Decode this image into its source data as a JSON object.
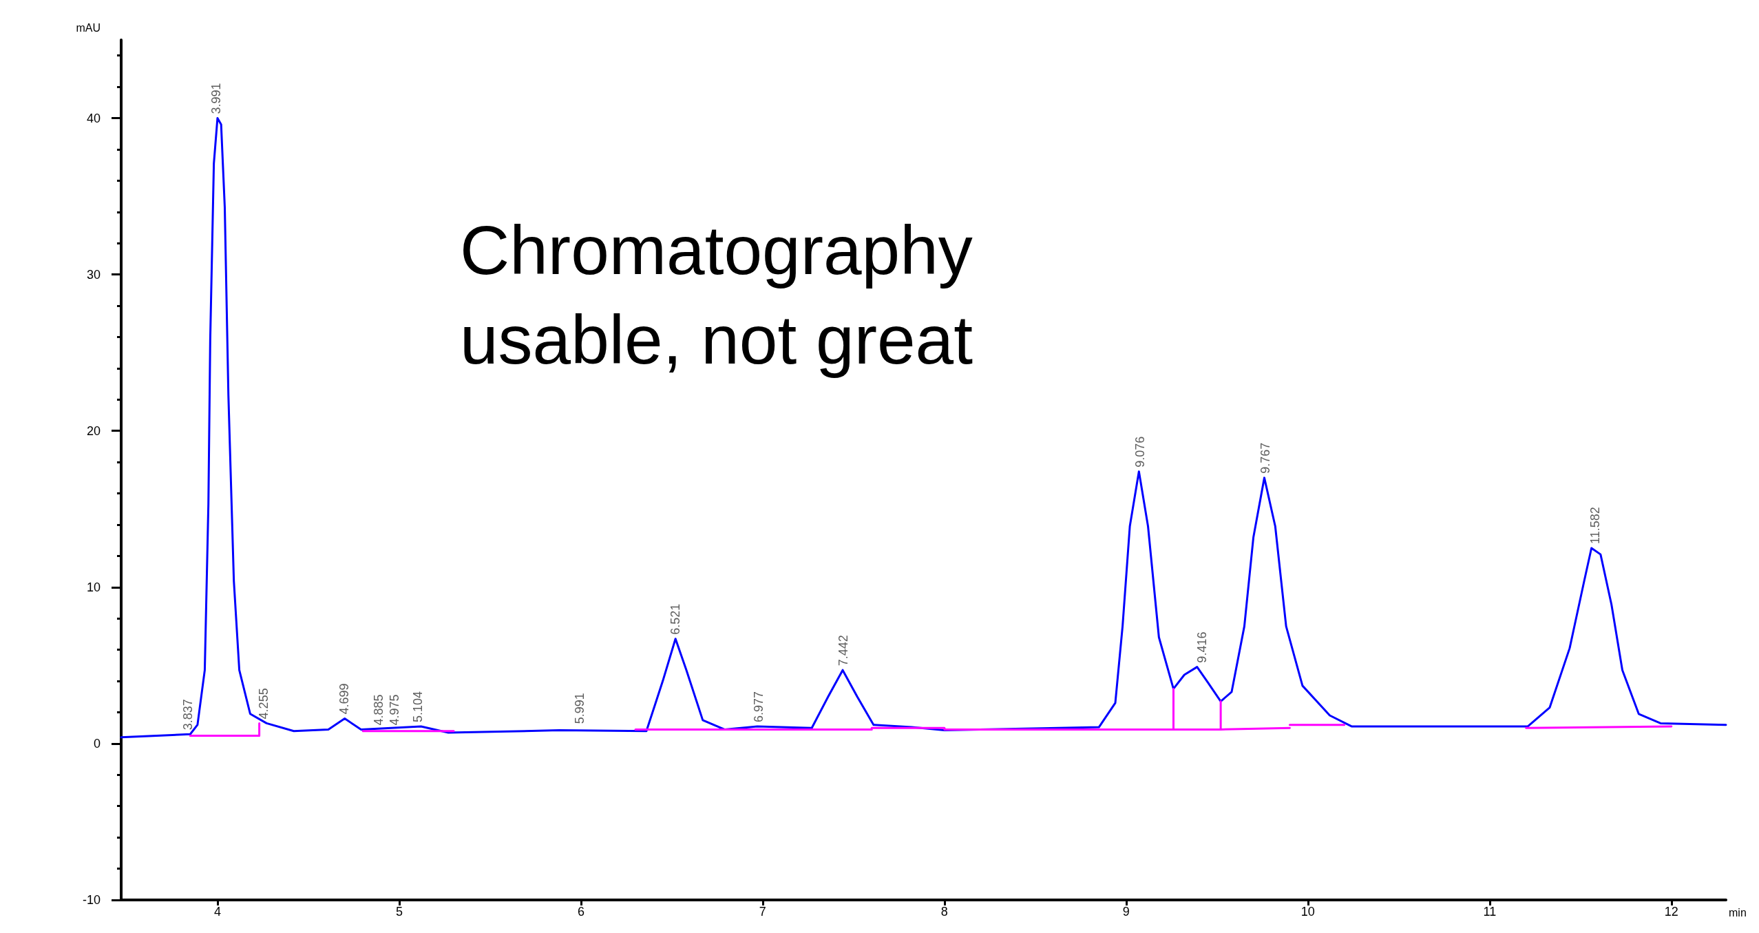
{
  "chart_data": {
    "type": "line",
    "xlabel": "min",
    "ylabel": "mAU",
    "xlim": [
      3.47,
      12.3
    ],
    "ylim": [
      -10,
      45
    ],
    "xticks": [
      4,
      5,
      6,
      7,
      8,
      9,
      10,
      11,
      12
    ],
    "yticks": [
      -10,
      0,
      10,
      20,
      30,
      40
    ],
    "grid": false,
    "marker": "none",
    "line_style": "solid",
    "series": [
      {
        "color": "#0000ff",
        "x": [
          3.47,
          3.85,
          3.89,
          3.93,
          3.95,
          3.96,
          3.98,
          4.0,
          4.02,
          4.04,
          4.06,
          4.09,
          4.12,
          4.18,
          4.27,
          4.42,
          4.61,
          4.7,
          4.79,
          5.12,
          5.27,
          5.88,
          6.36,
          6.45,
          6.52,
          6.58,
          6.67,
          6.79,
          6.97,
          7.27,
          7.36,
          7.44,
          7.52,
          7.61,
          7.82,
          8.0,
          8.85,
          8.94,
          8.98,
          9.02,
          9.07,
          9.12,
          9.18,
          9.26,
          9.32,
          9.39,
          9.45,
          9.52,
          9.58,
          9.65,
          9.7,
          9.76,
          9.82,
          9.88,
          9.97,
          10.12,
          10.24,
          11.21,
          11.33,
          11.44,
          11.52,
          11.56,
          11.61,
          11.67,
          11.73,
          11.82,
          11.94,
          12.3
        ],
        "values": [
          0.4,
          0.6,
          1.2,
          4.7,
          15.3,
          25.8,
          37.1,
          40,
          39.6,
          34.3,
          22.3,
          10.4,
          4.7,
          1.9,
          1.3,
          0.8,
          0.9,
          1.6,
          0.9,
          1.1,
          0.7,
          0.85,
          0.8,
          4,
          6.7,
          4.7,
          1.5,
          0.9,
          1.1,
          1,
          3,
          4.7,
          3,
          1.2,
          1.05,
          0.85,
          1.05,
          2.6,
          7.5,
          13.9,
          17.4,
          13.9,
          6.8,
          3.5,
          4.4,
          4.9,
          3.9,
          2.7,
          3.3,
          7.5,
          13.2,
          17,
          13.9,
          7.5,
          3.7,
          1.8,
          1.1,
          1.1,
          2.3,
          6.1,
          10.4,
          12.5,
          12.1,
          8.9,
          4.7,
          1.9,
          1.3,
          1.2
        ]
      },
      {
        "color": "#ff00ff",
        "x": [
          3.85,
          4.23,
          4.23
        ],
        "values": [
          0.5,
          0.5,
          1.3
        ]
      },
      {
        "color": "#ff00ff",
        "x": [
          4.8,
          5.3
        ],
        "values": [
          0.8,
          0.8
        ]
      },
      {
        "color": "#ff00ff",
        "x": [
          6.3,
          7.6
        ],
        "values": [
          0.9,
          0.9
        ]
      },
      {
        "color": "#ff00ff",
        "x": [
          7.6,
          8.0
        ],
        "values": [
          1.0,
          1.0
        ]
      },
      {
        "color": "#ff00ff",
        "x": [
          8.0,
          9.26,
          9.26,
          9.26,
          9.52,
          9.52,
          9.52,
          9.9
        ],
        "values": [
          0.9,
          0.9,
          3.5,
          0.9,
          0.9,
          2.7,
          0.9,
          1.0
        ]
      },
      {
        "color": "#ff00ff",
        "x": [
          9.9,
          10.2
        ],
        "values": [
          1.2,
          1.2
        ]
      },
      {
        "color": "#ff00ff",
        "x": [
          11.2,
          12.0
        ],
        "values": [
          1.0,
          1.1
        ]
      }
    ],
    "annotations": [
      "Chromatography usable, not great",
      {
        "text": "3.837",
        "x": 3.837,
        "y": 0.6
      },
      {
        "text": "3.991",
        "x": 3.991,
        "y": 40
      },
      {
        "text": "4.255",
        "x": 4.255,
        "y": 1.3
      },
      {
        "text": "4.699",
        "x": 4.699,
        "y": 1.6
      },
      {
        "text": "4.885",
        "x": 4.885,
        "y": 0.9
      },
      {
        "text": "4.975",
        "x": 4.975,
        "y": 0.9
      },
      {
        "text": "5.104",
        "x": 5.104,
        "y": 1.1
      },
      {
        "text": "5.991",
        "x": 5.991,
        "y": 1.0
      },
      {
        "text": "6.521",
        "x": 6.521,
        "y": 6.7
      },
      {
        "text": "6.977",
        "x": 6.977,
        "y": 1.1
      },
      {
        "text": "7.442",
        "x": 7.442,
        "y": 4.7
      },
      {
        "text": "9.076",
        "x": 9.076,
        "y": 17.4
      },
      {
        "text": "9.416",
        "x": 9.416,
        "y": 4.9
      },
      {
        "text": "9.767",
        "x": 9.767,
        "y": 17.0
      },
      {
        "text": "11.582",
        "x": 11.582,
        "y": 12.5
      }
    ]
  }
}
